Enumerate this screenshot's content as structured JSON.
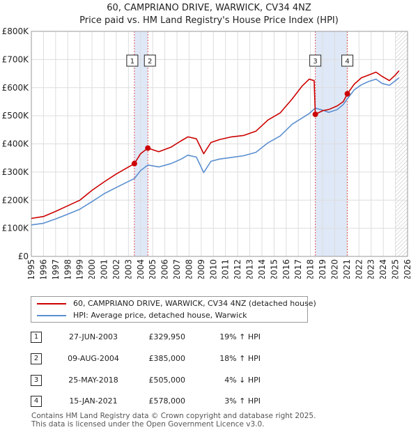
{
  "title": "60, CAMPRIANO DRIVE, WARWICK, CV34 4NZ",
  "subtitle": "Price paid vs. HM Land Registry's House Price Index (HPI)",
  "colors": {
    "property": "#cc0000",
    "hpi": "#5b8fd0",
    "highlight": "#dfe8f7",
    "marker_line": "#e05050",
    "grid": "#dddddd"
  },
  "chart_data": {
    "type": "line",
    "title": "60, CAMPRIANO DRIVE, WARWICK, CV34 4NZ",
    "subtitle": "Price paid vs. HM Land Registry's House Price Index (HPI)",
    "xlabel": "",
    "ylabel": "",
    "xlim": [
      1995,
      2026
    ],
    "ylim": [
      0,
      800000
    ],
    "y_ticks": [
      0,
      100000,
      200000,
      300000,
      400000,
      500000,
      600000,
      700000,
      800000
    ],
    "y_tick_labels": [
      "£0",
      "£100K",
      "£200K",
      "£300K",
      "£400K",
      "£500K",
      "£600K",
      "£700K",
      "£800K"
    ],
    "x_ticks": [
      1995,
      1996,
      1997,
      1998,
      1999,
      2000,
      2001,
      2002,
      2003,
      2004,
      2005,
      2006,
      2007,
      2008,
      2009,
      2010,
      2011,
      2012,
      2013,
      2014,
      2015,
      2016,
      2017,
      2018,
      2019,
      2020,
      2021,
      2022,
      2023,
      2024,
      2025,
      2026
    ],
    "x_tick_labels": [
      "1995",
      "1996",
      "1997",
      "1998",
      "1999",
      "2000",
      "2001",
      "2002",
      "2003",
      "2004",
      "2005",
      "2006",
      "2007",
      "2008",
      "2009",
      "2010",
      "2011",
      "2012",
      "2013",
      "2014",
      "2015",
      "2016",
      "2017",
      "2018",
      "2019",
      "2020",
      "2021",
      "2022",
      "2023",
      "2024",
      "2025",
      "2026"
    ],
    "grid": true,
    "shaded_ranges": [
      [
        2003.49,
        2004.6
      ],
      [
        2018.4,
        2021.04
      ]
    ],
    "forecast_from": 2025.0,
    "series": [
      {
        "name": "60, CAMPRIANO DRIVE, WARWICK, CV34 4NZ (detached house)",
        "color": "#cc0000",
        "x": [
          1995.0,
          1996.0,
          1997.0,
          1998.0,
          1999.0,
          2000.0,
          2001.0,
          2002.0,
          2003.49,
          2004.0,
          2004.6,
          2005.5,
          2006.5,
          2007.3,
          2007.9,
          2008.6,
          2009.2,
          2009.8,
          2010.5,
          2011.5,
          2012.5,
          2013.5,
          2014.5,
          2015.5,
          2016.5,
          2017.3,
          2017.9,
          2018.3,
          2018.4,
          2019.0,
          2019.5,
          2020.2,
          2020.7,
          2021.04,
          2021.6,
          2022.2,
          2022.8,
          2023.4,
          2023.9,
          2024.5,
          2025.0,
          2025.3
        ],
        "values": [
          135000,
          142000,
          160000,
          180000,
          200000,
          235000,
          265000,
          293000,
          329950,
          365000,
          385000,
          372000,
          388000,
          410000,
          425000,
          418000,
          365000,
          405000,
          415000,
          425000,
          430000,
          445000,
          485000,
          510000,
          560000,
          605000,
          630000,
          625000,
          505000,
          518000,
          522000,
          535000,
          550000,
          578000,
          612000,
          635000,
          645000,
          655000,
          640000,
          625000,
          645000,
          660000
        ]
      },
      {
        "name": "HPI: Average price, detached house, Warwick",
        "color": "#5b8fd0",
        "x": [
          1995.0,
          1996.0,
          1997.0,
          1998.0,
          1999.0,
          2000.0,
          2001.0,
          2002.0,
          2003.49,
          2004.0,
          2004.6,
          2005.5,
          2006.5,
          2007.3,
          2007.9,
          2008.6,
          2009.2,
          2009.8,
          2010.5,
          2011.5,
          2012.5,
          2013.5,
          2014.5,
          2015.5,
          2016.5,
          2017.3,
          2017.9,
          2018.4,
          2019.0,
          2019.5,
          2020.2,
          2020.7,
          2021.04,
          2021.6,
          2022.2,
          2022.8,
          2023.4,
          2023.9,
          2024.5,
          2025.0,
          2025.3
        ],
        "values": [
          112000,
          118000,
          133000,
          150000,
          168000,
          195000,
          223000,
          245000,
          277000,
          305000,
          325000,
          318000,
          330000,
          345000,
          360000,
          353000,
          298000,
          338000,
          346000,
          352000,
          358000,
          370000,
          404000,
          428000,
          470000,
          492000,
          508000,
          527000,
          520000,
          512000,
          522000,
          540000,
          560000,
          592000,
          610000,
          622000,
          630000,
          615000,
          608000,
          625000,
          635000
        ]
      }
    ],
    "sales": [
      {
        "id": "1",
        "x": 2003.49,
        "value": 329950
      },
      {
        "id": "2",
        "x": 2004.6,
        "value": 385000
      },
      {
        "id": "3",
        "x": 2018.4,
        "value": 505000
      },
      {
        "id": "4",
        "x": 2021.04,
        "value": 578000
      }
    ]
  },
  "legend": {
    "property_label": "60, CAMPRIANO DRIVE, WARWICK, CV34 4NZ (detached house)",
    "hpi_label": "HPI: Average price, detached house, Warwick"
  },
  "sales_table": [
    {
      "id": "1",
      "date": "27-JUN-2003",
      "price": "£329,950",
      "hpi": "19% ↑ HPI"
    },
    {
      "id": "2",
      "date": "09-AUG-2004",
      "price": "£385,000",
      "hpi": "18% ↑ HPI"
    },
    {
      "id": "3",
      "date": "25-MAY-2018",
      "price": "£505,000",
      "hpi": "4% ↓ HPI"
    },
    {
      "id": "4",
      "date": "15-JAN-2021",
      "price": "£578,000",
      "hpi": "3% ↑ HPI"
    }
  ],
  "footer": {
    "line1": "Contains HM Land Registry data © Crown copyright and database right 2025.",
    "line2": "This data is licensed under the Open Government Licence v3.0."
  }
}
